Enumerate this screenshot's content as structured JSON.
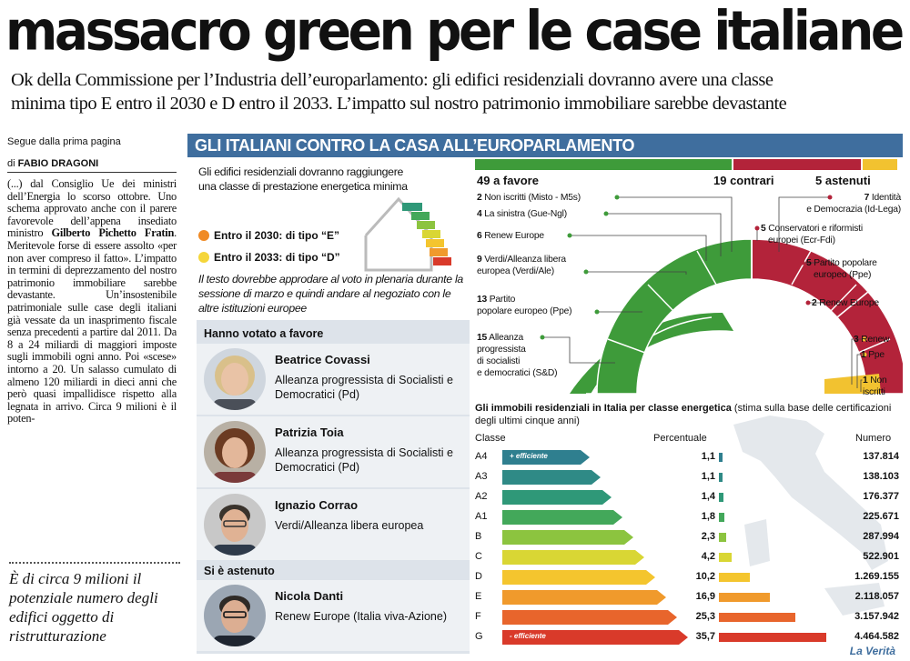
{
  "headline": "massacro green per le case italiane",
  "subhead": {
    "line1": "Ok della Commissione per l’Industria dell’europarlamento: gli edifici residenziali dovranno avere una classe",
    "line2": "minima tipo E entro il 2030 e D entro il 2033. L’impatto sul nostro patrimonio immobiliare sarebbe devastante"
  },
  "article": {
    "segue": "Segue dalla prima pagina",
    "byline_prefix": "di",
    "author": "FABIO DRAGONI",
    "body_parts": [
      "(...) dal Consiglio Ue dei ministri dell’Energia lo scorso ottobre. Uno schema approvato anche con il parere favorevole dell’appena insediato ministro ",
      "Gilberto Pichetto Fratin",
      ". Meritevole forse di essere assolto «per non aver compreso il fatto». L’impatto in termini di deprezzamento del nostro patrimonio immobiliare sarebbe devastante. Un’insostenibile patrimoniale sulle case degli italiani già vessate da un inasprimento fiscale senza precedenti a partire dal 2011. Da 8 a 24 miliardi di maggiori imposte sugli immobili ogni anno. Poi «scese» intorno a 20. Un salasso cumulato di almeno 120 miliardi in dieci anni che però quasi impallidisce rispetto alla legnata in arrivo. Circa 9 milioni è il poten-"
    ],
    "pullquote": "È di circa 9 milioni il potenziale numero degli edifici oggetto di ristrutturazione"
  },
  "infographic": {
    "banner": "GLI ITALIANI CONTRO LA CASA ALL’EUROPARLAMENTO",
    "intro": "Gli edifici residenziali dovranno raggiungere una classe di prestazione energetica minima",
    "legend": [
      {
        "label": "Entro il 2030: di tipo “E”",
        "color": "#f08a24"
      },
      {
        "label": "Entro il 2033: di tipo “D”",
        "color": "#f5d63a"
      }
    ],
    "note": "Il testo dovrebbe approdare al voto in plenaria durante la sessione di marzo e quindi andare al negoziato con le altre istituzioni europee",
    "favor_title": "Hanno votato a favore",
    "abstain_title": "Si è astenuto",
    "people": [
      {
        "name": "Beatrice Covassi",
        "party": "Alleanza progressista di Socialisti e Democratici (Pd)",
        "skin": "#e9c3a6",
        "hair": "#d9c08a",
        "bg": "#cfd6de"
      },
      {
        "name": "Patrizia Toia",
        "party": "Alleanza progressista di Socialisti e Democratici (Pd)",
        "skin": "#e3b79a",
        "hair": "#6b3b22",
        "bg": "#b8b0a4"
      },
      {
        "name": "Ignazio Corrao",
        "party": "Verdi/Alleanza libera europea",
        "skin": "#e0b294",
        "hair": "#3a332c",
        "bg": "#c8c8c8"
      },
      {
        "name": "Nicola Danti",
        "party": "Renew Europe (Italia viva-Azione)",
        "skin": "#dcae92",
        "hair": "#2f2a26",
        "bg": "#9ba6b3"
      }
    ],
    "votes": {
      "favor": "49 a favore",
      "against": "19 contrari",
      "abstain": "5 astenuti",
      "favor_color": "#3e9b3a",
      "against_color": "#b3233a",
      "abstain_color": "#f2c230"
    },
    "groups_left": [
      {
        "n": "2",
        "label": "Non iscritti (Misto - M5s)"
      },
      {
        "n": "4",
        "label": "La sinistra (Gue-Ngl)"
      },
      {
        "n": "6",
        "label": "Renew Europe"
      },
      {
        "n": "9",
        "label": "Verdi/Alleanza libera",
        "label2": "europea (Verdi/Ale)"
      },
      {
        "n": "13",
        "label": "Partito",
        "label2": "popolare europeo (Ppe)"
      },
      {
        "n": "15",
        "label": "Alleanza",
        "label2": "progressista",
        "label3": "di socialisti",
        "label4": "e democratici (S&D)"
      }
    ],
    "groups_right": [
      {
        "n": "7",
        "label": "Identità",
        "label2": "e Democrazia (Id-Lega)"
      },
      {
        "n": "5",
        "label": "Conservatori e riformisti",
        "label2": "europei (Ecr-Fdi)"
      },
      {
        "n": "5",
        "label": "Partito popolare",
        "label2": "europeo (Ppe)"
      },
      {
        "n": "2",
        "label": "Renew Europe"
      },
      {
        "n": "3",
        "label": "Renew"
      },
      {
        "n": "1",
        "label": "Ppe"
      },
      {
        "n": "1",
        "label": "Non",
        "label2": "iscritti"
      }
    ],
    "energy": {
      "title_bold": "Gli immobili residenziali in Italia per classe energetica",
      "title_rest": " (stima sulla base delle certificazioni degli ultimi cinque anni)",
      "col_class": "Classe",
      "col_pct": "Percentuale",
      "col_num": "Numero",
      "tag_top": "+ efficiente",
      "tag_bottom": "- efficiente",
      "rows": [
        {
          "cls": "A4",
          "pct": "1,1",
          "value": 1.1,
          "num": "137.814",
          "color": "#2f7f8f"
        },
        {
          "cls": "A3",
          "pct": "1,1",
          "value": 1.1,
          "num": "138.103",
          "color": "#2f8a86"
        },
        {
          "cls": "A2",
          "pct": "1,4",
          "value": 1.4,
          "num": "176.377",
          "color": "#2f9878"
        },
        {
          "cls": "A1",
          "pct": "1,8",
          "value": 1.8,
          "num": "225.671",
          "color": "#43a85a"
        },
        {
          "cls": "B",
          "pct": "2,3",
          "value": 2.3,
          "num": "287.994",
          "color": "#8cc43f"
        },
        {
          "cls": "C",
          "pct": "4,2",
          "value": 4.2,
          "num": "522.901",
          "color": "#d9d634"
        },
        {
          "cls": "D",
          "pct": "10,2",
          "value": 10.2,
          "num": "1.269.155",
          "color": "#f4c52e"
        },
        {
          "cls": "E",
          "pct": "16,9",
          "value": 16.9,
          "num": "2.118.057",
          "color": "#f09a2c"
        },
        {
          "cls": "F",
          "pct": "25,3",
          "value": 25.3,
          "num": "3.157.942",
          "color": "#e8652c"
        },
        {
          "cls": "G",
          "pct": "35,7",
          "value": 35.7,
          "num": "4.464.582",
          "color": "#d93a2a"
        }
      ]
    },
    "logo": "La Verità"
  }
}
